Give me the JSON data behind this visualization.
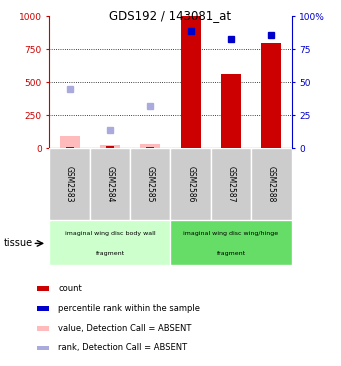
{
  "title": "GDS192 / 143081_at",
  "samples": [
    "GSM2583",
    "GSM2584",
    "GSM2585",
    "GSM2586",
    "GSM2587",
    "GSM2588"
  ],
  "x_positions": [
    1,
    2,
    3,
    4,
    5,
    6
  ],
  "bar_vals_present": [
    1000,
    560,
    800
  ],
  "bar_vals_absent_pink": [
    90,
    22,
    35
  ],
  "bar_vals_absent_red": [
    10,
    18,
    8
  ],
  "rank_present_pct": [
    89,
    83,
    86
  ],
  "rank_absent_pct": [
    45,
    14,
    32
  ],
  "present_indices": [
    3,
    4,
    5
  ],
  "absent_indices": [
    0,
    1,
    2
  ],
  "ylim_left": [
    0,
    1000
  ],
  "ylim_right": [
    0,
    100
  ],
  "yticks_left": [
    0,
    250,
    500,
    750,
    1000
  ],
  "ytick_labels_left": [
    "0",
    "250",
    "500",
    "750",
    "1000"
  ],
  "yticks_right": [
    0,
    25,
    50,
    75,
    100
  ],
  "ytick_labels_right": [
    "0",
    "25",
    "50",
    "75",
    "100%"
  ],
  "left_color": "#cc0000",
  "right_color": "#0000cc",
  "bar_color_red": "#cc0000",
  "bar_color_pink": "#ffbbbb",
  "dot_color_blue": "#0000cc",
  "dot_color_lightblue": "#aaaadd",
  "bar_width": 0.5,
  "tissue1_label1": "imaginal wing disc body wall",
  "tissue1_label2": "fragment",
  "tissue2_label1": "imaginal wing disc wing/hinge",
  "tissue2_label2": "fragment",
  "tissue1_color": "#ccffcc",
  "tissue2_color": "#66dd66",
  "legend": [
    {
      "color": "#cc0000",
      "label": "count"
    },
    {
      "color": "#0000cc",
      "label": "percentile rank within the sample"
    },
    {
      "color": "#ffbbbb",
      "label": "value, Detection Call = ABSENT"
    },
    {
      "color": "#aaaadd",
      "label": "rank, Detection Call = ABSENT"
    }
  ]
}
